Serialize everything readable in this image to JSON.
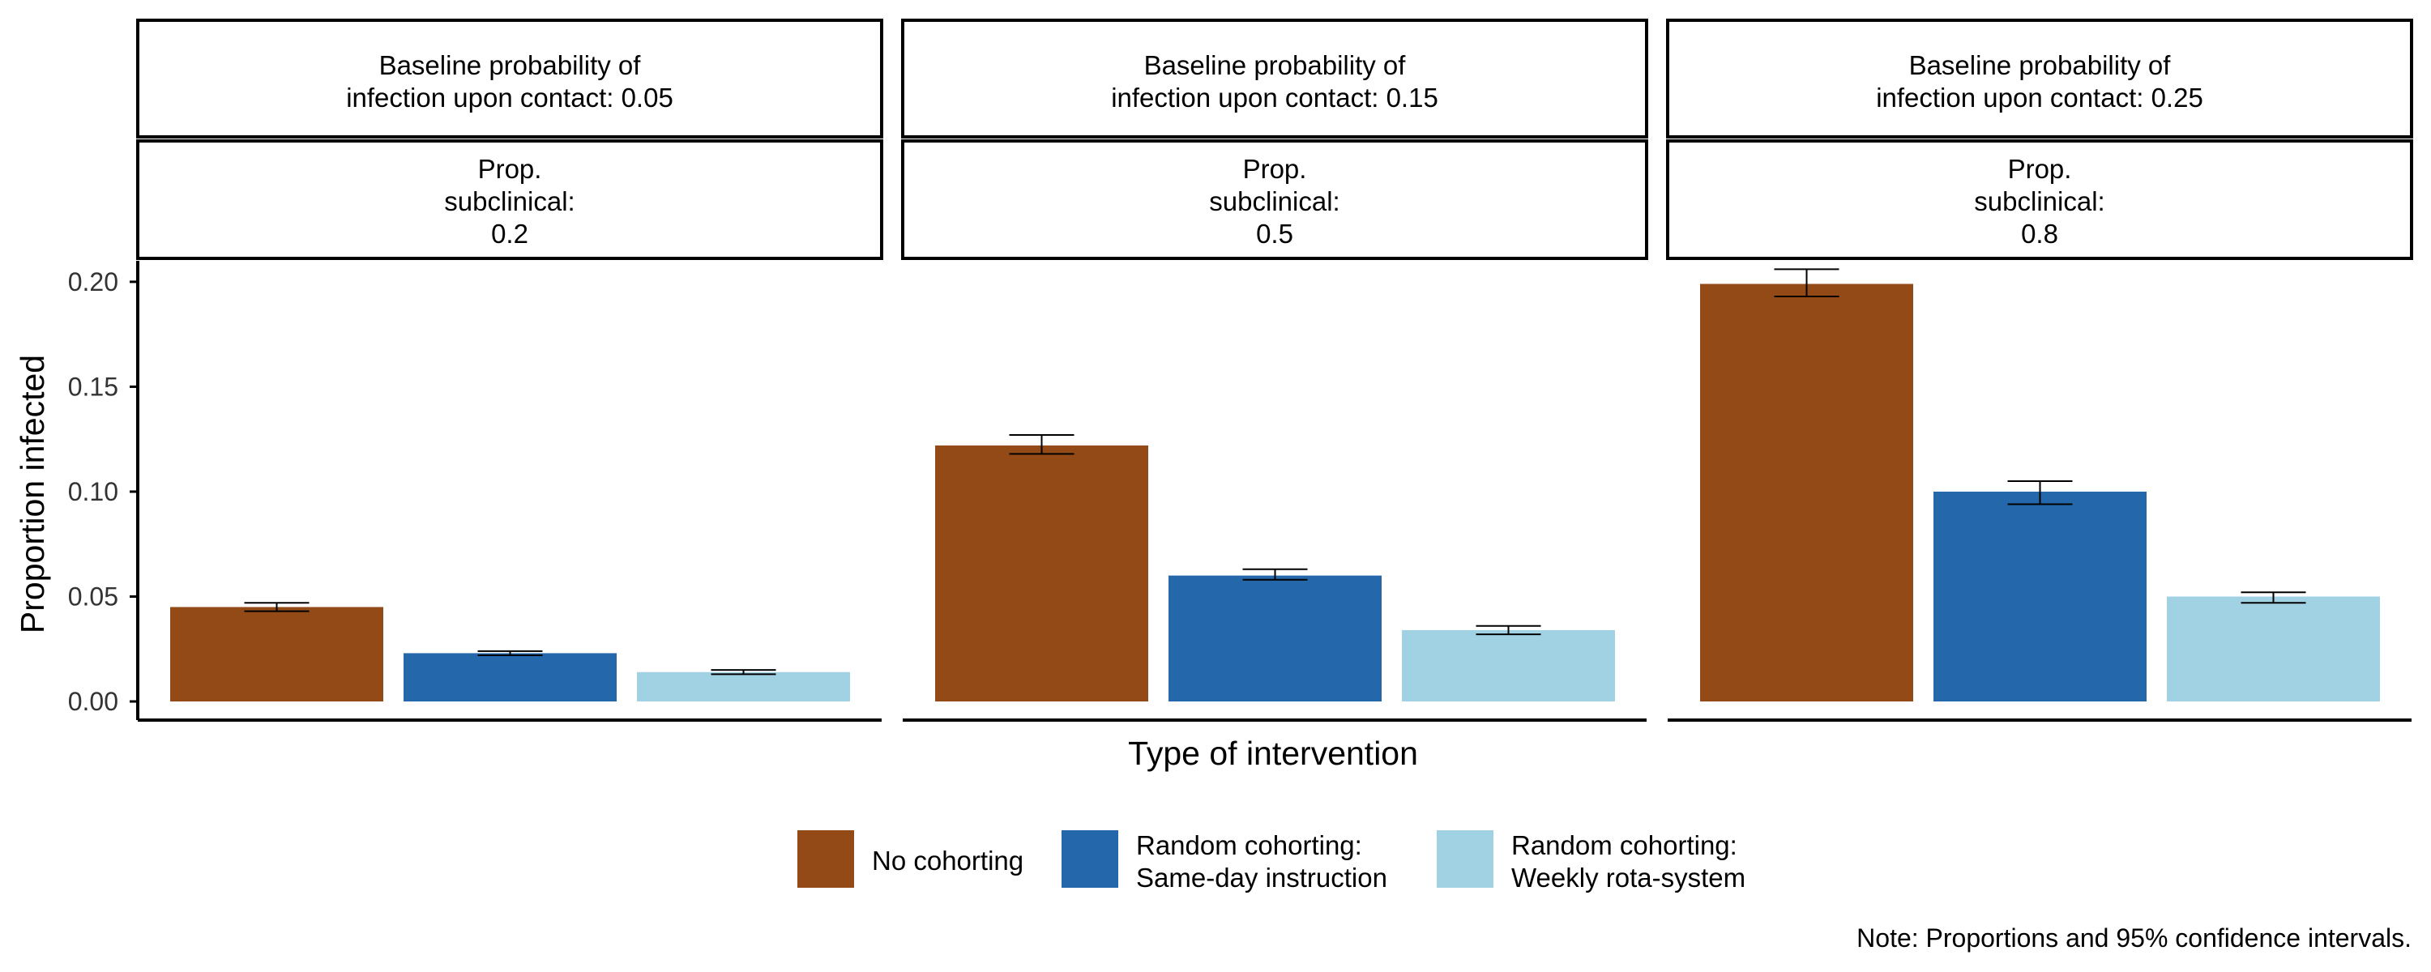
{
  "chart_data": {
    "type": "bar",
    "ylabel": "Proportion infected",
    "xlabel": "Type of intervention",
    "ylim": [
      0,
      0.21
    ],
    "yticks": [
      "0.00",
      "0.05",
      "0.10",
      "0.15",
      "0.20"
    ],
    "ytick_values": [
      0,
      0.05,
      0.1,
      0.15,
      0.2
    ],
    "grid": false,
    "legend_position": "bottom",
    "series_names": [
      "No cohorting",
      [
        "Random cohorting:",
        "Same-day instruction"
      ],
      [
        "Random cohorting:",
        "Weekly rota-system"
      ]
    ],
    "colors": [
      "#934A16",
      "#2467AA",
      "#A1D2E4"
    ],
    "panels": [
      {
        "strip1": [
          "Baseline probability of",
          "infection upon contact: 0.05"
        ],
        "strip2": [
          "Prop.",
          "subclinical:",
          "0.2"
        ],
        "values": [
          0.045,
          0.023,
          0.014
        ],
        "ci_low": [
          0.043,
          0.022,
          0.013
        ],
        "ci_high": [
          0.047,
          0.024,
          0.015
        ]
      },
      {
        "strip1": [
          "Baseline probability of",
          "infection upon contact: 0.15"
        ],
        "strip2": [
          "Prop.",
          "subclinical:",
          "0.5"
        ],
        "values": [
          0.122,
          0.06,
          0.034
        ],
        "ci_low": [
          0.118,
          0.058,
          0.032
        ],
        "ci_high": [
          0.127,
          0.063,
          0.036
        ]
      },
      {
        "strip1": [
          "Baseline probability of",
          "infection upon contact: 0.25"
        ],
        "strip2": [
          "Prop.",
          "subclinical:",
          "0.8"
        ],
        "values": [
          0.199,
          0.1,
          0.05
        ],
        "ci_low": [
          0.193,
          0.094,
          0.047
        ],
        "ci_high": [
          0.206,
          0.105,
          0.052
        ]
      }
    ],
    "note": "Note: Proportions and 95% confidence intervals."
  }
}
